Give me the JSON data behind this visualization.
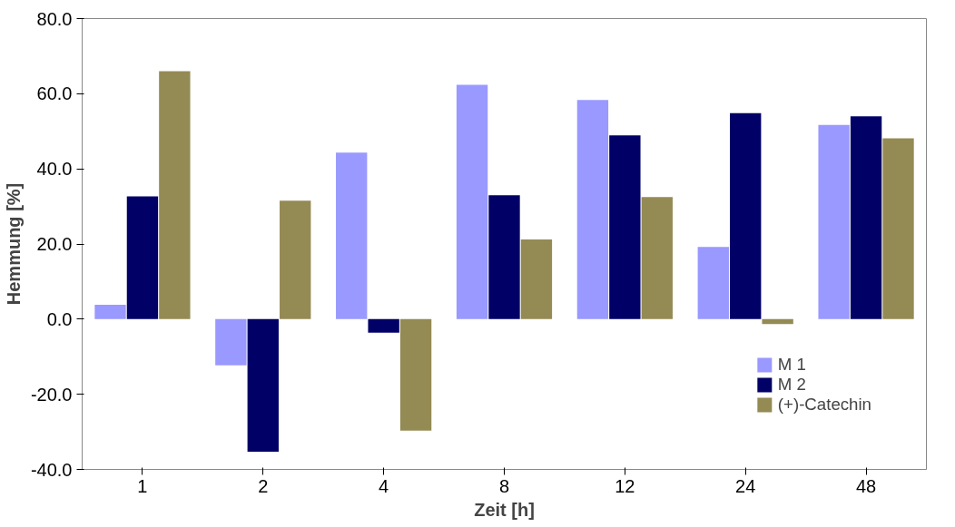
{
  "chart_data": {
    "type": "bar",
    "xlabel": "Zeit [h]",
    "ylabel": "Hemmung [%]",
    "categories": [
      "1",
      "2",
      "4",
      "8",
      "12",
      "24",
      "48"
    ],
    "series": [
      {
        "name": "M 1",
        "color": "#9999ff",
        "values": [
          3.8,
          -12.3,
          44.3,
          62.4,
          58.3,
          19.2,
          51.7
        ]
      },
      {
        "name": "M 2",
        "color": "#000066",
        "values": [
          32.7,
          -35.3,
          -3.6,
          33.0,
          48.9,
          54.8,
          54.0
        ]
      },
      {
        "name": "(+)-Catechin",
        "color": "#948a54",
        "values": [
          66.0,
          31.5,
          -29.7,
          21.2,
          32.5,
          -1.3,
          48.1
        ]
      }
    ],
    "ylim": [
      -40,
      80
    ],
    "yticks": [
      {
        "value": -40,
        "label": "-40.0"
      },
      {
        "value": -20,
        "label": "-20.0"
      },
      {
        "value": 0,
        "label": "0.0"
      },
      {
        "value": 20,
        "label": "20.0"
      },
      {
        "value": 40,
        "label": "40.0"
      },
      {
        "value": 60,
        "label": "60.0"
      },
      {
        "value": 80,
        "label": "80.0"
      }
    ],
    "grid": false,
    "legend": "bottom right"
  }
}
